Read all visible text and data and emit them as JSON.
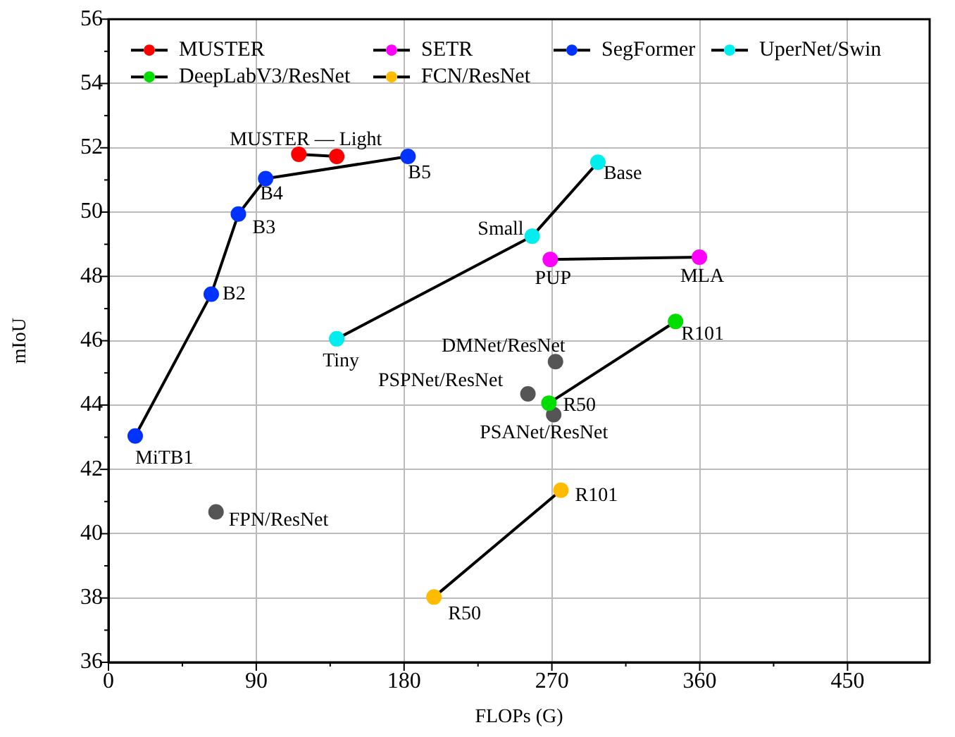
{
  "chart_data": {
    "type": "line",
    "xlabel": "FLOPs (G)",
    "ylabel": "mIoU",
    "xlim": [
      0,
      500
    ],
    "xticks": [
      0,
      90,
      180,
      270,
      360,
      450
    ],
    "ylim": [
      36,
      56
    ],
    "yticks": [
      36,
      38,
      40,
      42,
      44,
      46,
      48,
      50,
      52,
      54,
      56
    ],
    "grid": true,
    "legend": "top left",
    "marker": "circle",
    "line_style": "solid",
    "series": [
      {
        "name": "MUSTER",
        "color": "#ff0000",
        "x": [
          115.9,
          139
        ],
        "values": [
          51.8,
          51.73
        ]
      },
      {
        "name": "SETR",
        "color": "#ff00ff",
        "x": [
          269,
          359.8
        ],
        "values": [
          48.53,
          48.6
        ]
      },
      {
        "name": "SegFormer",
        "color": "#0033ff",
        "x": [
          16.3,
          62.6,
          79.1,
          95.7,
          182.4
        ],
        "values": [
          43.04,
          47.45,
          49.94,
          51.04,
          51.73
        ]
      },
      {
        "name": "UperNet/Swin",
        "color": "#00eeee",
        "x": [
          139,
          258,
          298
        ],
        "values": [
          46.06,
          49.25,
          51.55
        ]
      },
      {
        "name": "DeepLabV3/ResNet",
        "color": "#00dd00",
        "x": [
          268.2,
          345.3
        ],
        "values": [
          44.06,
          46.6
        ]
      },
      {
        "name": "FCN/ResNet",
        "color": "#ffbb00",
        "x": [
          198.2,
          275.5
        ],
        "values": [
          38.03,
          41.35
        ]
      },
      {
        "color": "#555555",
        "type": "scatter",
        "x": [
          272.2,
          255.4,
          271.1,
          65.5
        ],
        "values": [
          45.35,
          44.35,
          43.7,
          40.68
        ]
      }
    ],
    "annotations": [
      {
        "text": "MUSTER — Light",
        "x": 115.9,
        "y": 51.8
      },
      {
        "text": "MiTB1",
        "x": 16.3,
        "y": 43.04
      },
      {
        "text": "B2",
        "x": 62.6,
        "y": 47.45
      },
      {
        "text": "B3",
        "x": 79.1,
        "y": 49.94
      },
      {
        "text": "B4",
        "x": 95.7,
        "y": 51.04
      },
      {
        "text": "B5",
        "x": 182.4,
        "y": 51.73
      },
      {
        "text": "Tiny",
        "x": 139,
        "y": 46.06
      },
      {
        "text": "Small",
        "x": 258,
        "y": 49.25
      },
      {
        "text": "Base",
        "x": 298,
        "y": 51.55
      },
      {
        "text": "PUP",
        "x": 269,
        "y": 48.53
      },
      {
        "text": "MLA",
        "x": 359.8,
        "y": 48.6
      },
      {
        "text": "R101",
        "x": 345.3,
        "y": 46.6
      },
      {
        "text": "R50",
        "x": 268.2,
        "y": 44.06
      },
      {
        "text": "DMNet/ResNet",
        "x": 272.2,
        "y": 45.35
      },
      {
        "text": "PSPNet/ResNet",
        "x": 255.4,
        "y": 44.35
      },
      {
        "text": "PSANet/ResNet",
        "x": 271.1,
        "y": 43.7
      },
      {
        "text": "FPN/ResNet",
        "x": 65.5,
        "y": 40.68
      },
      {
        "text": "R50",
        "x": 198.2,
        "y": 38.03
      },
      {
        "text": "R101",
        "x": 275.5,
        "y": 41.35
      }
    ]
  }
}
